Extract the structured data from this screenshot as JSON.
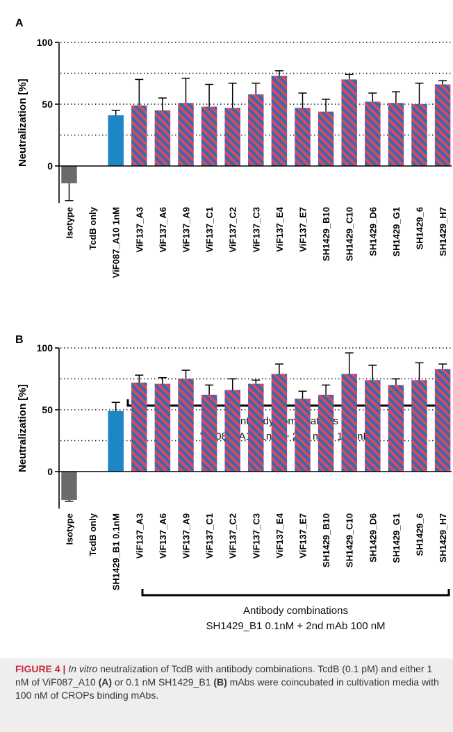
{
  "colors": {
    "isotype": "#6b6b6b",
    "single": "#1f86c6",
    "combo_blue": "#2e6bb7",
    "combo_red": "#e0465a",
    "axis": "#000000"
  },
  "chart_data": [
    {
      "panel": "A",
      "type": "bar",
      "ylabel": "Neutralization [%]",
      "yticks": [
        0,
        50,
        100
      ],
      "ylim": [
        -30,
        100
      ],
      "dotted_lines": [
        25,
        50,
        75,
        100
      ],
      "categories": [
        "Isotype",
        "TcdB only",
        "ViF087_A10 1nM",
        "ViF137_A3",
        "ViF137_A6",
        "ViF137_A9",
        "ViF137_C1",
        "ViF137_C2",
        "ViF137_C3",
        "ViF137_E4",
        "ViF137_E7",
        "SH1429_B10",
        "SH1429_C10",
        "SH1429_D6",
        "SH1429_G1",
        "SH1429_6",
        "SH1429_H7"
      ],
      "values": [
        -14,
        0,
        41,
        49,
        45,
        51,
        48,
        47,
        58,
        73,
        47,
        44,
        70,
        52,
        51,
        50,
        66
      ],
      "errors": [
        14,
        0,
        4,
        21,
        10,
        20,
        18,
        20,
        9,
        4,
        12,
        10,
        4,
        7,
        9,
        17,
        3
      ],
      "bar_style": [
        "isotype",
        "none",
        "single",
        "combo",
        "combo",
        "combo",
        "combo",
        "combo",
        "combo",
        "combo",
        "combo",
        "combo",
        "combo",
        "combo",
        "combo",
        "combo",
        "combo"
      ],
      "bracket_label_line1": "Antibody combinations",
      "bracket_label_line2": "ViF087_A10 1nM + 2nd mAb 100 nM"
    },
    {
      "panel": "B",
      "type": "bar",
      "ylabel": "Neutralization [%]",
      "yticks": [
        0,
        50,
        100
      ],
      "ylim": [
        -30,
        100
      ],
      "dotted_lines": [
        25,
        50,
        75,
        100
      ],
      "categories": [
        "Isotype",
        "TcdB only",
        "SH1429_B1 0.1nM",
        "ViF137_A3",
        "ViF137_A6",
        "ViF137_A9",
        "ViF137_C1",
        "ViF137_C2",
        "ViF137_C3",
        "ViF137_E4",
        "ViF137_E7",
        "SH1429_B10",
        "SH1429_C10",
        "SH1429_D6",
        "SH1429_G1",
        "SH1429_6",
        "SH1429_H7"
      ],
      "values": [
        -23,
        0,
        49,
        72,
        71,
        75,
        62,
        66,
        71,
        79,
        59,
        62,
        79,
        74,
        70,
        74,
        83
      ],
      "errors": [
        1,
        0,
        7,
        6,
        5,
        7,
        8,
        9,
        3,
        8,
        6,
        8,
        17,
        12,
        5,
        14,
        4
      ],
      "bar_style": [
        "isotype",
        "none",
        "single",
        "combo",
        "combo",
        "combo",
        "combo",
        "combo",
        "combo",
        "combo",
        "combo",
        "combo",
        "combo",
        "combo",
        "combo",
        "combo",
        "combo"
      ],
      "bracket_label_line1": "Antibody combinations",
      "bracket_label_line2": "SH1429_B1 0.1nM + 2nd mAb 100 nM"
    }
  ],
  "caption": {
    "figure_label": "FIGURE 4 |",
    "italic": "In vitro",
    "part1": " neutralization of TcdB with antibody combinations. TcdB (0.1 pM) and either 1 nM of ViF087_A10 ",
    "ref_a": "(A)",
    "part2": " or 0.1 nM SH1429_B1 ",
    "ref_b": "(B)",
    "part3": " mAbs were coincubated in cultivation media with 100 nM of CROPs binding mAbs."
  }
}
